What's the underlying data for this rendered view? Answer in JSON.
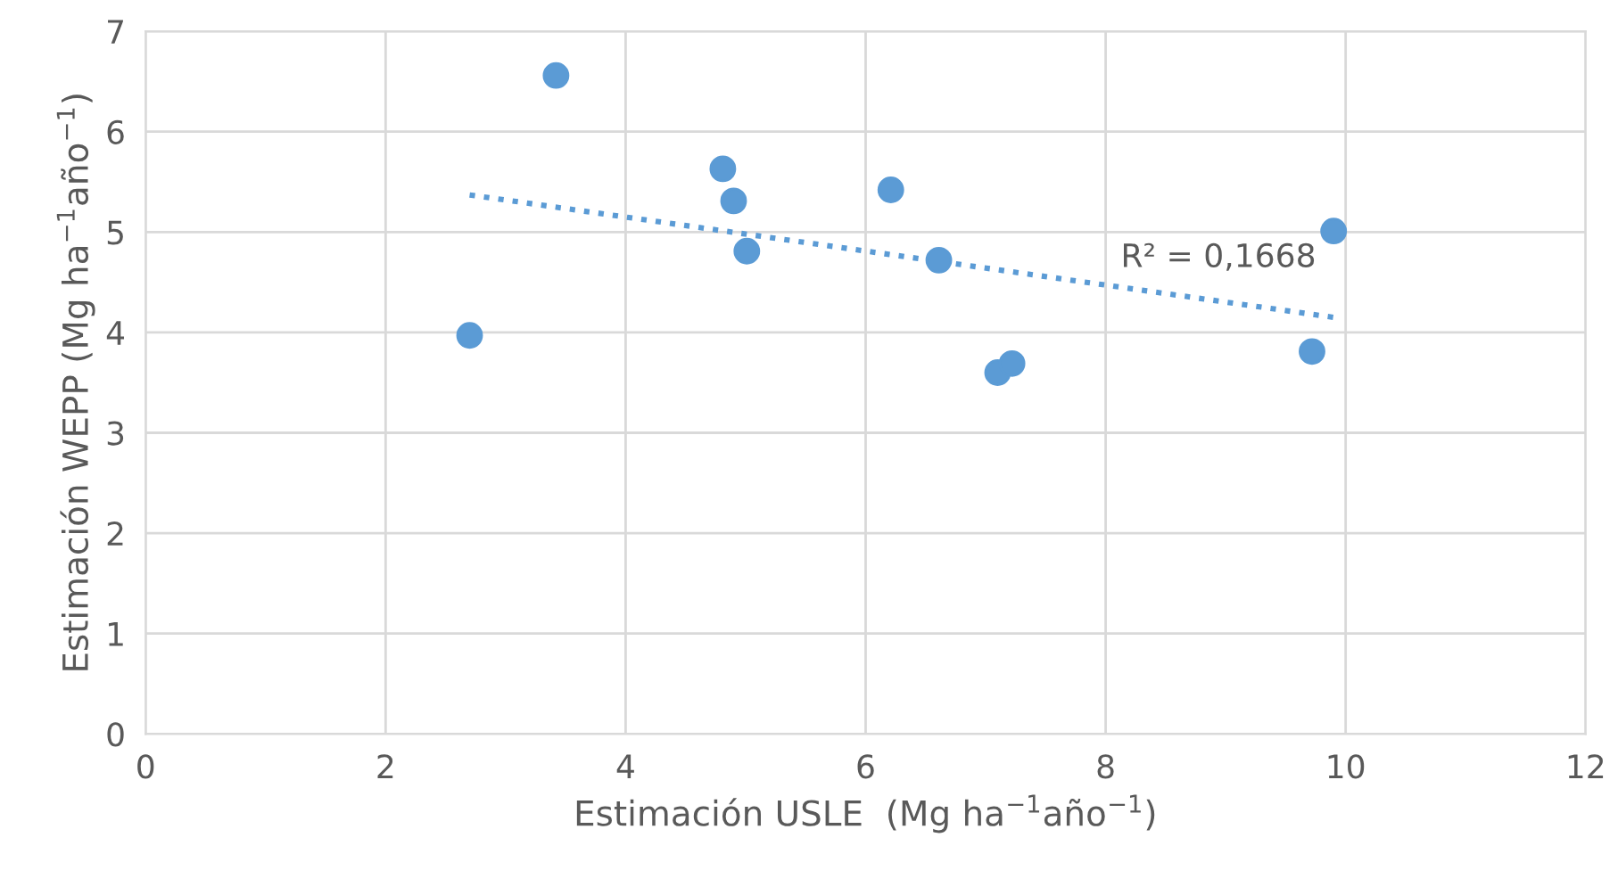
{
  "chart_data": {
    "type": "scatter",
    "xlabel": "Estimación USLE  (Mg ha$^{−1}$año$^{−1}$)",
    "ylabel": "Estimación WEPP (Mg ha$^{−1}$año$^{−1}$)",
    "xlim": [
      0,
      12
    ],
    "ylim": [
      0,
      7
    ],
    "xticks": [
      0,
      2,
      4,
      6,
      8,
      10,
      12
    ],
    "yticks": [
      0,
      1,
      2,
      3,
      4,
      5,
      6,
      7
    ],
    "grid": true,
    "marker": "circle",
    "series": [
      {
        "color": "#5b9bd5",
        "x": [
          2.7,
          3.42,
          4.81,
          4.9,
          5.01,
          6.21,
          6.61,
          7.1,
          7.22,
          9.72,
          9.9
        ],
        "values": [
          3.97,
          6.56,
          5.63,
          5.31,
          4.81,
          5.42,
          4.72,
          3.6,
          3.69,
          3.81,
          5.01
        ]
      },
      {
        "type": "line",
        "color": "#5b9bd5",
        "line_style": "dotted",
        "marker": "none",
        "x": [
          2.7,
          9.9
        ],
        "values": [
          5.37,
          4.15
        ]
      }
    ],
    "annotations": [
      "R² = 0,1668"
    ]
  }
}
